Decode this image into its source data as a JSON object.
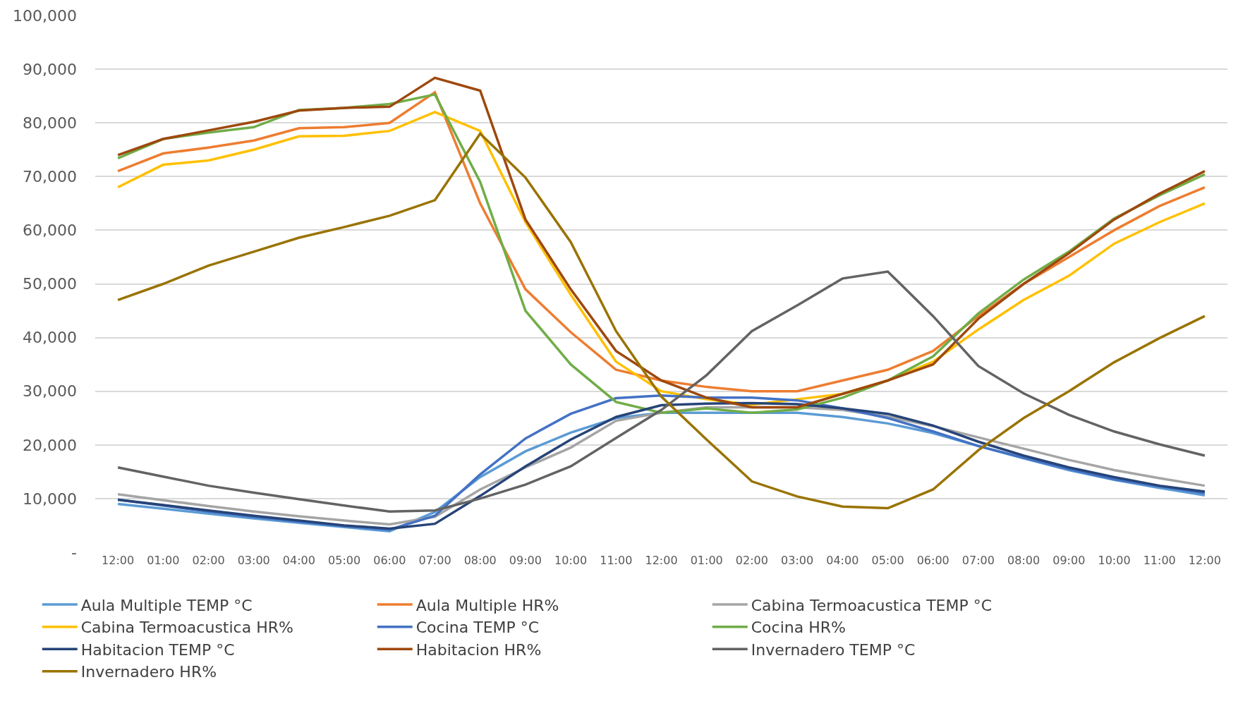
{
  "chart_data": {
    "type": "line",
    "categories": [
      "12:00",
      "01:00",
      "02:00",
      "03:00",
      "04:00",
      "05:00",
      "06:00",
      "07:00",
      "08:00",
      "09:00",
      "10:00",
      "11:00",
      "12:00",
      "01:00",
      "02:00",
      "03:00",
      "04:00",
      "05:00",
      "06:00",
      "07:00",
      "08:00",
      "09:00",
      "10:00",
      "11:00",
      "12:00"
    ],
    "ylim": [
      0,
      100000
    ],
    "yticks": [
      {
        "value": 0,
        "label": "-"
      },
      {
        "value": 10000,
        "label": "10,000"
      },
      {
        "value": 20000,
        "label": "20,000"
      },
      {
        "value": 30000,
        "label": "30,000"
      },
      {
        "value": 40000,
        "label": "40,000"
      },
      {
        "value": 50000,
        "label": "50,000"
      },
      {
        "value": 60000,
        "label": "60,000"
      },
      {
        "value": 70000,
        "label": "70,000"
      },
      {
        "value": 80000,
        "label": "80,000"
      },
      {
        "value": 90000,
        "label": "90,000"
      },
      {
        "value": 100000,
        "label": "100,000"
      }
    ],
    "grid": "y",
    "legend": "bottom",
    "marker": "none",
    "line_style": "solid",
    "series": [
      {
        "name": "Aula Multiple TEMP °C",
        "color": "#5b9bd5",
        "values": [
          9000,
          8100,
          7200,
          6300,
          5500,
          4700,
          3900,
          7500,
          14000,
          18800,
          22300,
          25000,
          26000,
          26000,
          26000,
          26000,
          25200,
          24000,
          22200,
          19800,
          17500,
          15300,
          13500,
          12000,
          10600
        ]
      },
      {
        "name": "Aula Multiple HR%",
        "color": "#ed7d31",
        "values": [
          71000,
          74300,
          75400,
          76700,
          79000,
          79200,
          80000,
          85700,
          65000,
          49000,
          41000,
          34000,
          32000,
          30800,
          30000,
          30000,
          32000,
          34000,
          37500,
          44000,
          50000,
          55000,
          60000,
          64500,
          68000
        ]
      },
      {
        "name": "Cabina Termoacustica TEMP °C",
        "color": "#a5a5a5",
        "values": [
          10800,
          9700,
          8600,
          7600,
          6700,
          5900,
          5200,
          6600,
          11700,
          15800,
          19500,
          24500,
          26000,
          27000,
          27000,
          27000,
          26500,
          25300,
          23500,
          21400,
          19300,
          17200,
          15300,
          13800,
          12400
        ]
      },
      {
        "name": "Cabina Termoacustica HR%",
        "color": "#ffc000",
        "values": [
          68000,
          72200,
          73000,
          75000,
          77500,
          77600,
          78500,
          82000,
          78500,
          61500,
          48000,
          35500,
          30000,
          28500,
          27500,
          28500,
          29500,
          32000,
          35500,
          41500,
          47000,
          51500,
          57500,
          61500,
          65000
        ]
      },
      {
        "name": "Cocina TEMP °C",
        "color": "#4472c4",
        "values": [
          9800,
          8700,
          7600,
          6600,
          5700,
          4900,
          4200,
          6800,
          14500,
          21200,
          25800,
          28700,
          29200,
          28800,
          28800,
          28300,
          26800,
          25000,
          22500,
          19800,
          17600,
          15500,
          13600,
          12300,
          11000
        ]
      },
      {
        "name": "Cocina HR%",
        "color": "#70ad47",
        "values": [
          73400,
          77000,
          78200,
          79200,
          82400,
          82800,
          83500,
          85300,
          69000,
          45000,
          35000,
          28000,
          26000,
          26800,
          26000,
          26600,
          28800,
          32000,
          36500,
          44500,
          50800,
          56000,
          62200,
          66500,
          70400
        ]
      },
      {
        "name": "Habitacion TEMP °C",
        "color": "#264478",
        "values": [
          9800,
          8800,
          7800,
          6800,
          5900,
          5000,
          4400,
          5300,
          10500,
          16000,
          21000,
          25200,
          27400,
          27700,
          27800,
          27600,
          26800,
          25800,
          23600,
          20600,
          18000,
          15800,
          14000,
          12400,
          11300
        ]
      },
      {
        "name": "Habitacion HR%",
        "color": "#9e480e",
        "values": [
          74000,
          77000,
          78600,
          80200,
          82300,
          82800,
          83000,
          88400,
          86000,
          62000,
          49000,
          37500,
          32000,
          28800,
          27000,
          27000,
          29500,
          32000,
          35000,
          43500,
          50000,
          55700,
          62000,
          66800,
          71000
        ]
      },
      {
        "name": "Invernadero TEMP °C",
        "color": "#636363",
        "values": [
          15800,
          14100,
          12400,
          11100,
          9900,
          8700,
          7600,
          7800,
          10000,
          12600,
          16000,
          21300,
          26500,
          33000,
          41200,
          46000,
          51000,
          52300,
          44000,
          34700,
          29600,
          25600,
          22500,
          20100,
          18000
        ]
      },
      {
        "name": "Invernadero HR%",
        "color": "#997300",
        "values": [
          47000,
          50000,
          53400,
          56000,
          58600,
          60600,
          62700,
          65600,
          78000,
          69800,
          57800,
          41200,
          29000,
          21000,
          13200,
          10400,
          8500,
          8200,
          11700,
          19000,
          25000,
          30000,
          35400,
          39900,
          44000
        ]
      }
    ]
  }
}
